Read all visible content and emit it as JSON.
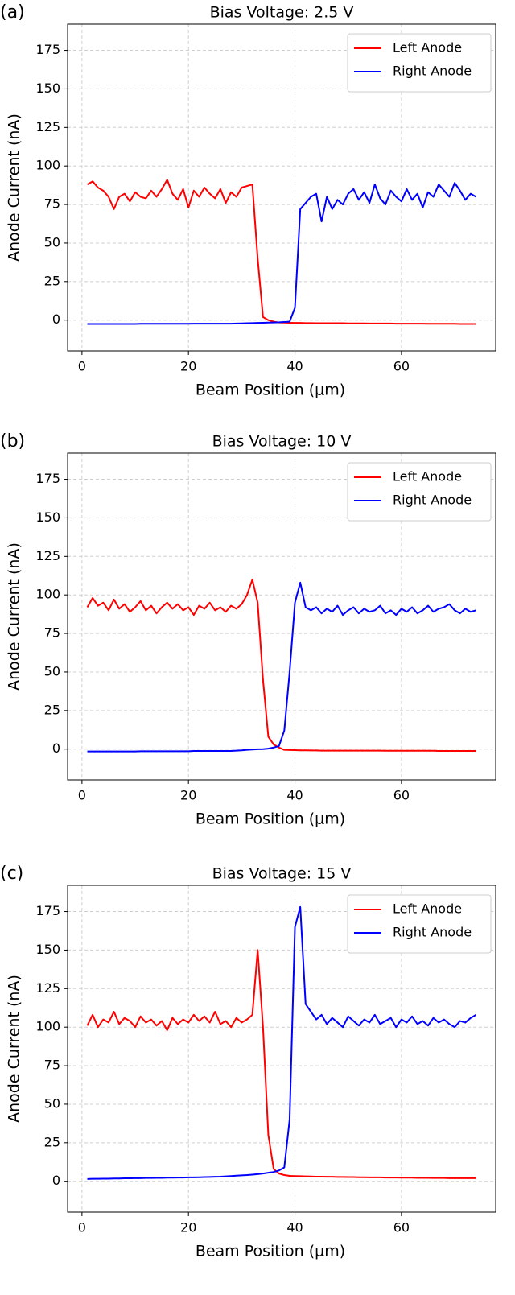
{
  "chart_data": [
    {
      "type": "line",
      "panel_label": "(a)",
      "title": "Bias Voltage: 2.5 V",
      "x_label": "Beam Position (μm)",
      "y_label": "Anode Current (nA)",
      "x": [
        1,
        2,
        3,
        4,
        5,
        6,
        7,
        8,
        9,
        10,
        11,
        12,
        13,
        14,
        15,
        16,
        17,
        18,
        19,
        20,
        21,
        22,
        23,
        24,
        25,
        26,
        27,
        28,
        29,
        30,
        31,
        32,
        33,
        34,
        35,
        36,
        37,
        38,
        39,
        40,
        41,
        42,
        43,
        44,
        45,
        46,
        47,
        48,
        49,
        50,
        51,
        52,
        53,
        54,
        55,
        56,
        57,
        58,
        59,
        60,
        61,
        62,
        63,
        64,
        65,
        66,
        67,
        68,
        69,
        70,
        71,
        72,
        73,
        74
      ],
      "series": [
        {
          "name": "Left Anode",
          "color": "#ff0000",
          "values": [
            88,
            90,
            86,
            84,
            80,
            72,
            80,
            82,
            77,
            83,
            80,
            79,
            84,
            80,
            85,
            91,
            82,
            78,
            85,
            73,
            84,
            80,
            86,
            82,
            79,
            85,
            76,
            83,
            80,
            86,
            87,
            88,
            40,
            2,
            0,
            -1,
            -1.5,
            -1.6,
            -1.7,
            -1.8,
            -1.8,
            -1.9,
            -1.9,
            -2,
            -2,
            -2,
            -2,
            -2,
            -2,
            -2.1,
            -2.1,
            -2.1,
            -2.1,
            -2.2,
            -2.2,
            -2.2,
            -2.2,
            -2.2,
            -2.3,
            -2.3,
            -2.3,
            -2.3,
            -2.3,
            -2.3,
            -2.4,
            -2.4,
            -2.4,
            -2.4,
            -2.4,
            -2.4,
            -2.5,
            -2.5,
            -2.5,
            -2.5
          ]
        },
        {
          "name": "Right Anode",
          "color": "#0000ff",
          "values": [
            -2.5,
            -2.5,
            -2.5,
            -2.5,
            -2.5,
            -2.5,
            -2.5,
            -2.5,
            -2.5,
            -2.5,
            -2.4,
            -2.4,
            -2.4,
            -2.4,
            -2.4,
            -2.4,
            -2.4,
            -2.4,
            -2.4,
            -2.4,
            -2.3,
            -2.3,
            -2.3,
            -2.3,
            -2.3,
            -2.3,
            -2.3,
            -2.3,
            -2.2,
            -2.1,
            -2,
            -1.9,
            -1.8,
            -1.7,
            -1.6,
            -1.5,
            -1.4,
            -1.2,
            -1,
            8,
            72,
            76,
            80,
            82,
            64,
            80,
            72,
            78,
            75,
            82,
            85,
            78,
            83,
            76,
            88,
            79,
            75,
            84,
            80,
            77,
            85,
            78,
            82,
            73,
            83,
            80,
            88,
            84,
            80,
            89,
            84,
            78,
            82,
            80
          ]
        }
      ],
      "xlim": [
        -2.7,
        77.7
      ],
      "ylim": [
        -20,
        192
      ],
      "xticks": [
        0,
        20,
        40,
        60
      ],
      "yticks": [
        0,
        25,
        50,
        75,
        100,
        125,
        150,
        175
      ],
      "grid": true,
      "legend": "upper right"
    },
    {
      "type": "line",
      "panel_label": "(b)",
      "title": "Bias Voltage: 10 V",
      "x_label": "Beam Position (μm)",
      "y_label": "Anode Current (nA)",
      "x": [
        1,
        2,
        3,
        4,
        5,
        6,
        7,
        8,
        9,
        10,
        11,
        12,
        13,
        14,
        15,
        16,
        17,
        18,
        19,
        20,
        21,
        22,
        23,
        24,
        25,
        26,
        27,
        28,
        29,
        30,
        31,
        32,
        33,
        34,
        35,
        36,
        37,
        38,
        39,
        40,
        41,
        42,
        43,
        44,
        45,
        46,
        47,
        48,
        49,
        50,
        51,
        52,
        53,
        54,
        55,
        56,
        57,
        58,
        59,
        60,
        61,
        62,
        63,
        64,
        65,
        66,
        67,
        68,
        69,
        70,
        71,
        72,
        73,
        74
      ],
      "series": [
        {
          "name": "Left Anode",
          "color": "#ff0000",
          "values": [
            92,
            98,
            93,
            95,
            90,
            97,
            91,
            94,
            89,
            92,
            96,
            90,
            93,
            88,
            92,
            95,
            91,
            94,
            90,
            92,
            87,
            93,
            91,
            95,
            90,
            92,
            89,
            93,
            91,
            94,
            100,
            110,
            95,
            45,
            8,
            3,
            1,
            -0.5,
            -0.6,
            -0.7,
            -0.8,
            -0.8,
            -0.9,
            -0.9,
            -1,
            -1,
            -1,
            -1,
            -1,
            -1,
            -1,
            -1,
            -1,
            -1,
            -1,
            -1,
            -1.1,
            -1.1,
            -1.1,
            -1.1,
            -1.1,
            -1.1,
            -1.1,
            -1.1,
            -1.1,
            -1.1,
            -1.2,
            -1.2,
            -1.2,
            -1.2,
            -1.2,
            -1.2,
            -1.2,
            -1.2
          ]
        },
        {
          "name": "Right Anode",
          "color": "#0000ff",
          "values": [
            -1.5,
            -1.5,
            -1.5,
            -1.5,
            -1.5,
            -1.5,
            -1.5,
            -1.5,
            -1.5,
            -1.5,
            -1.4,
            -1.4,
            -1.4,
            -1.4,
            -1.4,
            -1.4,
            -1.4,
            -1.4,
            -1.4,
            -1.4,
            -1.2,
            -1.2,
            -1.2,
            -1.2,
            -1.2,
            -1.2,
            -1.2,
            -1.2,
            -1,
            -0.8,
            -0.5,
            -0.3,
            -0.1,
            0,
            0.3,
            1,
            2,
            12,
            50,
            95,
            108,
            92,
            90,
            92,
            88,
            91,
            89,
            93,
            87,
            90,
            92,
            88,
            91,
            89,
            90,
            93,
            88,
            90,
            87,
            91,
            89,
            92,
            88,
            90,
            93,
            89,
            91,
            92,
            94,
            90,
            88,
            91,
            89,
            90
          ]
        }
      ],
      "xlim": [
        -2.7,
        77.7
      ],
      "ylim": [
        -20,
        192
      ],
      "xticks": [
        0,
        20,
        40,
        60
      ],
      "yticks": [
        0,
        25,
        50,
        75,
        100,
        125,
        150,
        175
      ],
      "grid": true,
      "legend": "upper right"
    },
    {
      "type": "line",
      "panel_label": "(c)",
      "title": "Bias Voltage: 15 V",
      "x_label": "Beam Position (μm)",
      "y_label": "Anode Current (nA)",
      "x": [
        1,
        2,
        3,
        4,
        5,
        6,
        7,
        8,
        9,
        10,
        11,
        12,
        13,
        14,
        15,
        16,
        17,
        18,
        19,
        20,
        21,
        22,
        23,
        24,
        25,
        26,
        27,
        28,
        29,
        30,
        31,
        32,
        33,
        34,
        35,
        36,
        37,
        38,
        39,
        40,
        41,
        42,
        43,
        44,
        45,
        46,
        47,
        48,
        49,
        50,
        51,
        52,
        53,
        54,
        55,
        56,
        57,
        58,
        59,
        60,
        61,
        62,
        63,
        64,
        65,
        66,
        67,
        68,
        69,
        70,
        71,
        72,
        73,
        74
      ],
      "series": [
        {
          "name": "Left Anode",
          "color": "#ff0000",
          "values": [
            101,
            108,
            100,
            105,
            103,
            110,
            102,
            106,
            104,
            100,
            107,
            103,
            105,
            101,
            104,
            98,
            106,
            102,
            105,
            103,
            108,
            104,
            107,
            103,
            110,
            102,
            104,
            100,
            106,
            103,
            105,
            108,
            150,
            100,
            30,
            8,
            5,
            4,
            3.5,
            3.4,
            3.3,
            3.2,
            3.1,
            3,
            3,
            2.9,
            2.9,
            2.8,
            2.8,
            2.7,
            2.7,
            2.6,
            2.6,
            2.5,
            2.5,
            2.5,
            2.4,
            2.4,
            2.4,
            2.3,
            2.3,
            2.3,
            2.2,
            2.2,
            2.2,
            2.1,
            2.1,
            2.1,
            2,
            2,
            2,
            2,
            2,
            2
          ]
        },
        {
          "name": "Right Anode",
          "color": "#0000ff",
          "values": [
            1.5,
            1.6,
            1.6,
            1.7,
            1.7,
            1.8,
            1.8,
            1.9,
            1.9,
            2,
            2,
            2.1,
            2.1,
            2.2,
            2.2,
            2.3,
            2.3,
            2.4,
            2.4,
            2.5,
            2.5,
            2.6,
            2.7,
            2.8,
            2.9,
            3,
            3.2,
            3.4,
            3.6,
            3.8,
            4,
            4.3,
            4.6,
            5,
            5.5,
            6,
            7,
            9,
            40,
            165,
            178,
            115,
            110,
            105,
            108,
            102,
            106,
            103,
            100,
            107,
            104,
            101,
            105,
            103,
            108,
            102,
            104,
            106,
            100,
            105,
            103,
            107,
            102,
            104,
            101,
            106,
            103,
            105,
            102,
            100,
            104,
            103,
            106,
            108
          ]
        }
      ],
      "xlim": [
        -2.7,
        77.7
      ],
      "ylim": [
        -20,
        192
      ],
      "xticks": [
        0,
        20,
        40,
        60
      ],
      "yticks": [
        0,
        25,
        50,
        75,
        100,
        125,
        150,
        175
      ],
      "grid": true,
      "legend": "upper right"
    }
  ]
}
